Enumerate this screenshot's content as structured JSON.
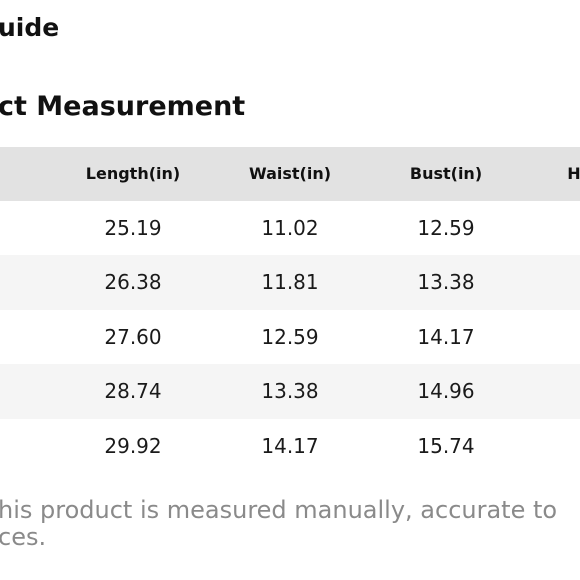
{
  "header": {
    "title": "uide"
  },
  "section": {
    "title": "ct Measurement"
  },
  "table": {
    "columns": [
      "Length(in)",
      "Waist(in)",
      "Bust(in)",
      "H"
    ],
    "rows": [
      [
        "25.19",
        "11.02",
        "12.59"
      ],
      [
        "26.38",
        "11.81",
        "13.38"
      ],
      [
        "27.60",
        "12.59",
        "14.17"
      ],
      [
        "28.74",
        "13.38",
        "14.96"
      ],
      [
        "29.92",
        "14.17",
        "15.74"
      ]
    ]
  },
  "note": {
    "lines": [
      "his product is measured manually, accurate to",
      "ces."
    ]
  }
}
